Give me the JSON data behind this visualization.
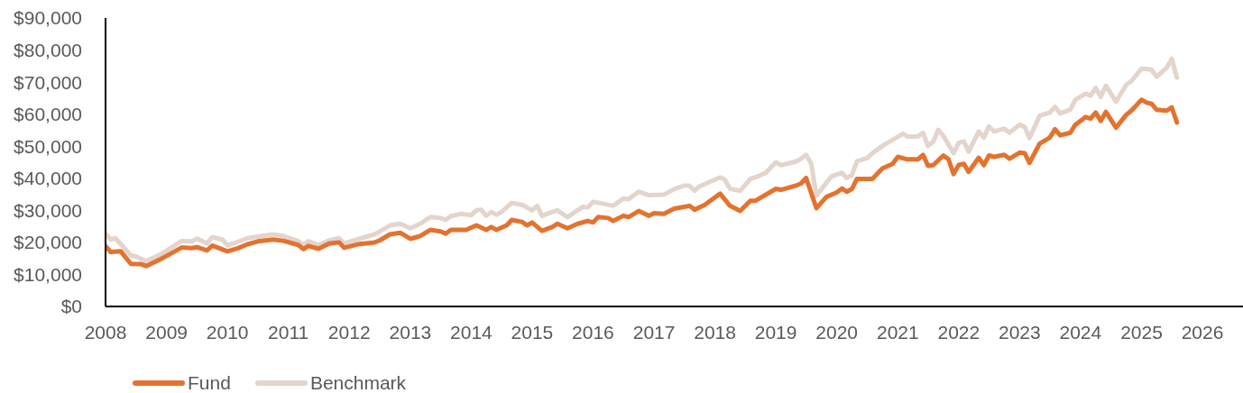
{
  "chart_data": {
    "type": "line",
    "xlim": [
      "2008-01",
      "2026-09"
    ],
    "xticks": [
      "2008",
      "2009",
      "2010",
      "2011",
      "2012",
      "2013",
      "2014",
      "2015",
      "2016",
      "2017",
      "2018",
      "2019",
      "2020",
      "2021",
      "2022",
      "2023",
      "2024",
      "2025",
      "2026"
    ],
    "ylim": [
      0,
      90000
    ],
    "yticks": [
      {
        "value": 0,
        "label": "$0"
      },
      {
        "value": 10000,
        "label": "$10,000"
      },
      {
        "value": 20000,
        "label": "$20,000"
      },
      {
        "value": 30000,
        "label": "$30,000"
      },
      {
        "value": 40000,
        "label": "$40,000"
      },
      {
        "value": 50000,
        "label": "$50,000"
      },
      {
        "value": 60000,
        "label": "$60,000"
      },
      {
        "value": 70000,
        "label": "$70,000"
      },
      {
        "value": 80000,
        "label": "$80,000"
      },
      {
        "value": 90000,
        "label": "$90,000"
      }
    ],
    "legend": "bottom left",
    "marker": "none",
    "line_style": "solid",
    "series": [
      {
        "name": "Fund",
        "color": "#e4722f",
        "x": [
          "2008-01",
          "2008-02",
          "2008-04",
          "2008-06",
          "2008-08",
          "2008-09",
          "2008-12",
          "2009-01",
          "2009-04",
          "2009-06",
          "2009-07",
          "2009-09",
          "2009-10",
          "2010-01",
          "2010-03",
          "2010-05",
          "2010-07",
          "2010-10",
          "2010-12",
          "2011-03",
          "2011-04",
          "2011-05",
          "2011-07",
          "2011-09",
          "2011-11",
          "2011-12",
          "2012-03",
          "2012-06",
          "2012-07",
          "2012-09",
          "2012-11",
          "2013-01",
          "2013-03",
          "2013-05",
          "2013-07",
          "2013-08",
          "2013-09",
          "2013-12",
          "2014-02",
          "2014-04",
          "2014-05",
          "2014-06",
          "2014-08",
          "2014-09",
          "2014-11",
          "2014-12",
          "2015-01",
          "2015-03",
          "2015-05",
          "2015-06",
          "2015-08",
          "2015-10",
          "2015-12",
          "2016-01",
          "2016-02",
          "2016-04",
          "2016-05",
          "2016-07",
          "2016-08",
          "2016-10",
          "2016-12",
          "2017-01",
          "2017-03",
          "2017-05",
          "2017-08",
          "2017-09",
          "2017-11",
          "2018-02",
          "2018-04",
          "2018-06",
          "2018-08",
          "2018-09",
          "2019-01",
          "2019-02",
          "2019-05",
          "2019-06",
          "2019-07",
          "2019-09",
          "2019-11",
          "2020-01",
          "2020-02",
          "2020-03",
          "2020-04",
          "2020-05",
          "2020-08",
          "2020-10",
          "2020-12",
          "2021-01",
          "2021-03",
          "2021-05",
          "2021-06",
          "2021-07",
          "2021-08",
          "2021-10",
          "2021-11",
          "2021-12",
          "2022-01",
          "2022-02",
          "2022-03",
          "2022-05",
          "2022-06",
          "2022-07",
          "2022-08",
          "2022-10",
          "2022-11",
          "2023-01",
          "2023-02",
          "2023-03",
          "2023-05",
          "2023-07",
          "2023-08",
          "2023-09",
          "2023-11",
          "2023-12",
          "2024-02",
          "2024-03",
          "2024-04",
          "2024-05",
          "2024-06",
          "2024-08",
          "2024-10",
          "2024-11",
          "2025-01",
          "2025-02",
          "2025-03",
          "2025-04",
          "2025-06",
          "2025-07",
          "2025-08"
        ],
        "values": [
          18900,
          17000,
          17200,
          13300,
          13200,
          12600,
          14900,
          15800,
          18400,
          18200,
          18500,
          17500,
          19000,
          17200,
          18100,
          19400,
          20300,
          20900,
          20500,
          19200,
          17900,
          18900,
          18000,
          19600,
          20000,
          18300,
          19500,
          20000,
          20600,
          22500,
          23000,
          21100,
          22000,
          23900,
          23400,
          22700,
          23900,
          23900,
          25300,
          23900,
          24800,
          23900,
          25300,
          27000,
          26400,
          25300,
          26200,
          23600,
          24800,
          25800,
          24400,
          25800,
          26700,
          26200,
          27900,
          27600,
          26700,
          28300,
          27900,
          29800,
          28300,
          29100,
          28900,
          30500,
          31400,
          30200,
          31700,
          35200,
          31400,
          29800,
          33000,
          33000,
          36700,
          36400,
          37700,
          38400,
          40100,
          30700,
          34200,
          35600,
          36800,
          35800,
          36700,
          39800,
          39800,
          43100,
          44500,
          46700,
          45900,
          45900,
          47300,
          43900,
          44100,
          47100,
          45900,
          41300,
          44200,
          44500,
          42000,
          46400,
          44100,
          47100,
          46700,
          47300,
          46100,
          48000,
          47800,
          44800,
          50800,
          52700,
          55300,
          53400,
          54200,
          56700,
          59100,
          58600,
          60500,
          57900,
          60700,
          55800,
          59800,
          61100,
          64500,
          63600,
          63300,
          61400,
          61100,
          62100,
          57400
        ]
      },
      {
        "name": "Benchmark",
        "color": "#e3d4cc",
        "x": [
          "2008-01",
          "2008-02",
          "2008-03",
          "2008-06",
          "2008-07",
          "2008-09",
          "2008-12",
          "2009-01",
          "2009-04",
          "2009-06",
          "2009-07",
          "2009-09",
          "2009-10",
          "2009-12",
          "2010-01",
          "2010-03",
          "2010-05",
          "2010-07",
          "2010-10",
          "2010-12",
          "2011-03",
          "2011-04",
          "2011-05",
          "2011-07",
          "2011-09",
          "2011-11",
          "2011-12",
          "2012-03",
          "2012-06",
          "2012-07",
          "2012-09",
          "2012-11",
          "2013-01",
          "2013-03",
          "2013-05",
          "2013-07",
          "2013-08",
          "2013-09",
          "2013-11",
          "2014-01",
          "2014-02",
          "2014-03",
          "2014-04",
          "2014-05",
          "2014-06",
          "2014-07",
          "2014-09",
          "2014-11",
          "2015-01",
          "2015-02",
          "2015-03",
          "2015-05",
          "2015-06",
          "2015-08",
          "2015-11",
          "2015-12",
          "2016-01",
          "2016-03",
          "2016-05",
          "2016-07",
          "2016-08",
          "2016-10",
          "2016-12",
          "2017-03",
          "2017-05",
          "2017-07",
          "2017-08",
          "2017-09",
          "2017-10",
          "2017-12",
          "2018-02",
          "2018-03",
          "2018-04",
          "2018-06",
          "2018-08",
          "2018-09",
          "2018-11",
          "2019-01",
          "2019-02",
          "2019-05",
          "2019-06",
          "2019-07",
          "2019-08",
          "2019-09",
          "2019-11",
          "2019-12",
          "2020-02",
          "2020-03",
          "2020-04",
          "2020-05",
          "2020-07",
          "2020-08",
          "2020-10",
          "2020-12",
          "2021-02",
          "2021-03",
          "2021-05",
          "2021-06",
          "2021-07",
          "2021-08",
          "2021-09",
          "2021-10",
          "2021-12",
          "2022-01",
          "2022-02",
          "2022-03",
          "2022-05",
          "2022-06",
          "2022-07",
          "2022-08",
          "2022-10",
          "2022-11",
          "2023-01",
          "2023-02",
          "2023-03",
          "2023-05",
          "2023-07",
          "2023-08",
          "2023-09",
          "2023-11",
          "2023-12",
          "2024-02",
          "2024-03",
          "2024-04",
          "2024-05",
          "2024-06",
          "2024-08",
          "2024-10",
          "2024-11",
          "2025-01",
          "2025-03",
          "2025-04",
          "2025-06",
          "2025-07",
          "2025-08"
        ],
        "values": [
          22800,
          20900,
          21300,
          15900,
          15600,
          14100,
          16400,
          17400,
          20400,
          20300,
          21200,
          19700,
          21600,
          20900,
          19100,
          20100,
          21300,
          21800,
          22500,
          22000,
          20400,
          19200,
          20400,
          19200,
          20600,
          21300,
          19700,
          21100,
          22500,
          23400,
          25300,
          25800,
          24400,
          25800,
          27900,
          27600,
          27000,
          28200,
          28900,
          28500,
          30000,
          30200,
          28300,
          29500,
          28600,
          29500,
          32300,
          31700,
          30000,
          31400,
          28300,
          29500,
          30000,
          27900,
          31100,
          30900,
          32600,
          32100,
          31400,
          33700,
          33500,
          35800,
          34700,
          34900,
          36600,
          37700,
          37700,
          36100,
          37500,
          38900,
          40300,
          39600,
          36700,
          36100,
          39800,
          40300,
          41700,
          45000,
          44100,
          45200,
          46100,
          47300,
          44500,
          34500,
          38700,
          40600,
          41700,
          40100,
          41000,
          45300,
          46300,
          47800,
          50100,
          52000,
          53900,
          53000,
          53000,
          54200,
          50100,
          51400,
          55100,
          53200,
          47800,
          51100,
          51500,
          48300,
          54600,
          52700,
          56200,
          54600,
          55500,
          54200,
          56700,
          56000,
          52500,
          59500,
          60500,
          62300,
          60200,
          61400,
          64500,
          66400,
          65800,
          68200,
          65400,
          68900,
          63900,
          69200,
          70300,
          74200,
          73900,
          71700,
          74500,
          77300,
          71400
        ]
      }
    ]
  }
}
